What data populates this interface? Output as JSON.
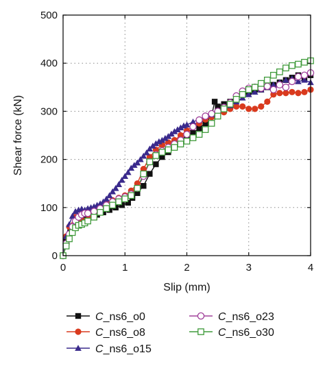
{
  "chart_data": {
    "type": "line",
    "title": "",
    "xlabel": "Slip (mm)",
    "ylabel": "Shear force (kN)",
    "xlim": [
      0,
      4
    ],
    "ylim": [
      0,
      500
    ],
    "xticks": [
      "0",
      "1",
      "2",
      "3",
      "4"
    ],
    "yticks": [
      "0",
      "100",
      "200",
      "300",
      "400",
      "500"
    ],
    "grid": "dotted",
    "legend_position": "below",
    "series": [
      {
        "name": "C_ns6_o0",
        "name_prefix": "C",
        "name_suffix": "_ns6_o0",
        "color": "#111111",
        "marker": "square-filled",
        "x": [
          0.0,
          0.05,
          0.12,
          0.2,
          0.28,
          0.35,
          0.45,
          0.55,
          0.65,
          0.75,
          0.85,
          0.95,
          1.05,
          1.12,
          1.2,
          1.3,
          1.4,
          1.5,
          1.6,
          1.7,
          1.8,
          1.9,
          2.0,
          2.1,
          2.2,
          2.3,
          2.4,
          2.45,
          2.5,
          2.6,
          2.7,
          2.8,
          2.9,
          3.0,
          3.1,
          3.2,
          3.3,
          3.4,
          3.5,
          3.6,
          3.7,
          3.8,
          3.9,
          4.0
        ],
        "y": [
          0,
          35,
          55,
          65,
          70,
          75,
          80,
          85,
          90,
          95,
          100,
          105,
          110,
          120,
          130,
          145,
          170,
          190,
          205,
          215,
          225,
          235,
          245,
          255,
          265,
          275,
          290,
          320,
          310,
          315,
          320,
          330,
          335,
          340,
          345,
          345,
          350,
          355,
          360,
          365,
          370,
          375,
          370,
          375
        ]
      },
      {
        "name": "C_ns6_o8",
        "name_prefix": "C",
        "name_suffix": "_ns6_o8",
        "color": "#d93a1e",
        "marker": "circle-filled",
        "x": [
          0.0,
          0.05,
          0.1,
          0.2,
          0.28,
          0.35,
          0.42,
          0.5,
          0.6,
          0.7,
          0.8,
          0.9,
          1.0,
          1.1,
          1.2,
          1.3,
          1.4,
          1.5,
          1.6,
          1.7,
          1.8,
          1.9,
          2.0,
          2.1,
          2.2,
          2.3,
          2.4,
          2.5,
          2.6,
          2.7,
          2.8,
          2.9,
          3.0,
          3.1,
          3.2,
          3.3,
          3.4,
          3.5,
          3.6,
          3.7,
          3.8,
          3.9,
          4.0
        ],
        "y": [
          0,
          40,
          60,
          80,
          75,
          72,
          78,
          90,
          100,
          108,
          115,
          120,
          125,
          135,
          150,
          180,
          205,
          220,
          230,
          235,
          240,
          250,
          260,
          270,
          275,
          283,
          288,
          293,
          298,
          305,
          310,
          310,
          305,
          305,
          310,
          320,
          335,
          338,
          338,
          340,
          338,
          340,
          345
        ]
      },
      {
        "name": "C_ns6_o15",
        "name_prefix": "C",
        "name_suffix": "_ns6_o15",
        "color": "#3a2a8c",
        "marker": "triangle-filled",
        "x": [
          0.0,
          0.05,
          0.1,
          0.15,
          0.2,
          0.25,
          0.3,
          0.35,
          0.4,
          0.45,
          0.5,
          0.55,
          0.6,
          0.65,
          0.7,
          0.75,
          0.8,
          0.85,
          0.9,
          0.95,
          1.0,
          1.05,
          1.1,
          1.15,
          1.2,
          1.25,
          1.3,
          1.35,
          1.4,
          1.45,
          1.5,
          1.55,
          1.6,
          1.65,
          1.7,
          1.75,
          1.8,
          1.85,
          1.9,
          1.95,
          2.0,
          2.1,
          2.2,
          2.3,
          2.4,
          2.5,
          2.6,
          2.7,
          2.8,
          2.9,
          3.0,
          3.1,
          3.2,
          3.3,
          3.4,
          3.5,
          3.6,
          3.7,
          3.8,
          3.9,
          4.0
        ],
        "y": [
          0,
          40,
          65,
          82,
          92,
          95,
          97,
          95,
          98,
          100,
          102,
          105,
          108,
          112,
          118,
          125,
          133,
          140,
          148,
          157,
          165,
          173,
          182,
          188,
          193,
          200,
          207,
          214,
          222,
          228,
          233,
          237,
          240,
          244,
          248,
          253,
          258,
          262,
          266,
          270,
          272,
          278,
          283,
          290,
          293,
          298,
          305,
          312,
          320,
          328,
          335,
          340,
          345,
          350,
          355,
          360,
          365,
          368,
          362,
          365,
          360
        ]
      },
      {
        "name": "C_ns6_o23",
        "name_prefix": "C",
        "name_suffix": "_ns6_o23",
        "color": "#a0409a",
        "marker": "circle-open",
        "x": [
          0.0,
          0.05,
          0.1,
          0.15,
          0.2,
          0.25,
          0.3,
          0.35,
          0.4,
          0.5,
          0.6,
          0.7,
          0.8,
          0.9,
          1.0,
          1.1,
          1.2,
          1.3,
          1.4,
          1.5,
          1.6,
          1.7,
          1.8,
          1.9,
          2.0,
          2.1,
          2.2,
          2.3,
          2.4,
          2.5,
          2.6,
          2.7,
          2.8,
          2.9,
          3.0,
          3.1,
          3.2,
          3.3,
          3.4,
          3.5,
          3.6,
          3.7,
          3.8,
          3.9,
          4.0
        ],
        "y": [
          0,
          25,
          45,
          60,
          72,
          80,
          85,
          88,
          88,
          92,
          98,
          105,
          112,
          118,
          122,
          128,
          140,
          165,
          195,
          210,
          218,
          225,
          232,
          240,
          252,
          268,
          282,
          290,
          295,
          300,
          308,
          318,
          332,
          342,
          348,
          350,
          348,
          352,
          345,
          355,
          350,
          362,
          372,
          375,
          380
        ]
      },
      {
        "name": "C_ns6_o30",
        "name_prefix": "C",
        "name_suffix": "_ns6_o30",
        "color": "#3f9a3a",
        "marker": "square-open",
        "x": [
          0.0,
          0.05,
          0.1,
          0.15,
          0.2,
          0.25,
          0.3,
          0.35,
          0.4,
          0.5,
          0.6,
          0.7,
          0.8,
          0.9,
          1.0,
          1.1,
          1.2,
          1.3,
          1.4,
          1.5,
          1.6,
          1.7,
          1.8,
          1.9,
          2.0,
          2.1,
          2.2,
          2.3,
          2.4,
          2.5,
          2.6,
          2.7,
          2.8,
          2.9,
          3.0,
          3.1,
          3.2,
          3.3,
          3.4,
          3.5,
          3.6,
          3.7,
          3.8,
          3.9,
          4.0
        ],
        "y": [
          0,
          20,
          35,
          48,
          58,
          63,
          65,
          68,
          72,
          80,
          90,
          98,
          105,
          112,
          118,
          125,
          140,
          170,
          195,
          208,
          215,
          220,
          225,
          232,
          238,
          245,
          252,
          262,
          275,
          290,
          305,
          315,
          325,
          335,
          345,
          350,
          358,
          365,
          375,
          382,
          390,
          395,
          398,
          402,
          405
        ]
      }
    ]
  }
}
